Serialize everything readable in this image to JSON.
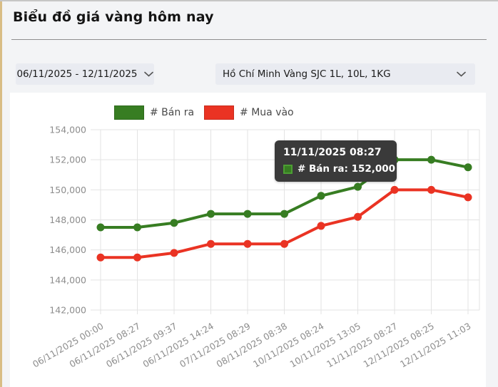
{
  "header": {
    "title": "Biểu đồ giá vàng hôm nay"
  },
  "filters": {
    "date_range": "06/11/2025 - 12/11/2025",
    "market": "Hồ Chí Minh Vàng SJC 1L, 10L, 1KG"
  },
  "tooltip": {
    "title": "11/11/2025 08:27",
    "body": "# Bán ra: 152,000",
    "series": "# Bán ra",
    "value": 152000
  },
  "chart_data": {
    "type": "line",
    "categories": [
      "06/11/2025 00:00",
      "06/11/2025 08:27",
      "06/11/2025 09:37",
      "06/11/2025 14:24",
      "07/11/2025 08:29",
      "08/11/2025 08:38",
      "10/11/2025 08:24",
      "10/11/2025 13:05",
      "11/11/2025 08:27",
      "12/11/2025 08:25",
      "12/11/2025 11:03"
    ],
    "series": [
      {
        "name": "# Bán ra",
        "color": "#377d22",
        "values": [
          147500,
          147500,
          147800,
          148400,
          148400,
          148400,
          149600,
          150200,
          152000,
          152000,
          151500
        ]
      },
      {
        "name": "# Mua vào",
        "color": "#ea3323",
        "values": [
          145500,
          145500,
          145800,
          146400,
          146400,
          146400,
          147600,
          148200,
          150000,
          150000,
          149500
        ]
      }
    ],
    "title": "",
    "xlabel": "",
    "ylabel": "",
    "ylim": [
      142000,
      154000
    ],
    "ytick_step": 2000,
    "grid": true,
    "legend_position": "top"
  },
  "colors": {
    "accent_strip": "#d9bd85",
    "page_bg": "#f3f4f6",
    "card_bg": "#ffffff",
    "dropdown_bg": "#e9ebf1",
    "tooltip_bg": "#3a3a3a",
    "grid": "#e3e3e3",
    "tick_text": "#8d8d8d",
    "tooltip_swatch_border": "#4c9e33"
  }
}
